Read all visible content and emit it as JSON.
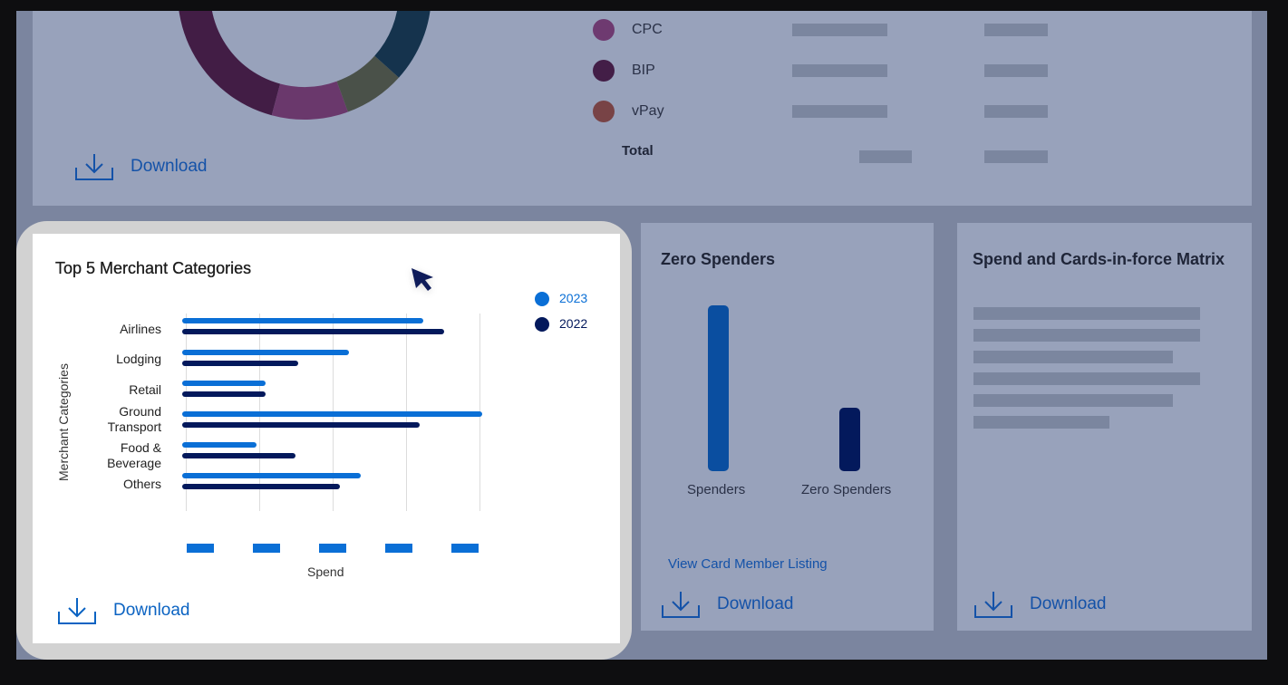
{
  "colors": {
    "frame_bg": "#7b859f",
    "card_bg_dimmed": "#98a2bb",
    "card_bg_active": "#ffffff",
    "highlight_ring": "#d2d2d2",
    "skeleton": "#7b869f",
    "link_blue": "#0b63c2",
    "series_2023": "#0a6fd6",
    "series_2022": "#03195c",
    "spenders_bar": "#0a4ea0",
    "zero_spenders_bar": "#03195c"
  },
  "top_card": {
    "donut_segments": [
      {
        "color": "#421d45",
        "label": "segment-1"
      },
      {
        "color": "#6a386c",
        "label": "segment-2"
      },
      {
        "color": "#4a5149",
        "label": "segment-3"
      },
      {
        "color": "#15334d",
        "label": "segment-4"
      }
    ],
    "legend": [
      {
        "label": "CPC",
        "color": "#6e3a70"
      },
      {
        "label": "BIP",
        "color": "#431e47"
      },
      {
        "label": "vPay",
        "color": "#784346"
      }
    ],
    "total_label": "Total",
    "download_label": "Download"
  },
  "merchant_card": {
    "title": "Top 5 Merchant Categories",
    "download_label": "Download"
  },
  "chart_data": {
    "type": "bar",
    "orientation": "horizontal",
    "title": "Top 5 Merchant Categories",
    "xlabel": "Spend",
    "ylabel": "Merchant Categories",
    "categories": [
      "Airlines",
      "Lodging",
      "Retail",
      "Ground Transport",
      "Food & Beverage",
      "Others"
    ],
    "category_lines": [
      [
        "Airlines"
      ],
      [
        "Lodging"
      ],
      [
        "Retail"
      ],
      [
        "Ground",
        "Transport"
      ],
      [
        "Food &",
        "Beverage"
      ],
      [
        "Others"
      ]
    ],
    "series": [
      {
        "name": "2023",
        "color": "#0a6fd6",
        "values": [
          81,
          56,
          28,
          101,
          25,
          60
        ]
      },
      {
        "name": "2022",
        "color": "#03195c",
        "values": [
          88,
          39,
          28,
          80,
          38,
          53
        ]
      }
    ],
    "xlim": [
      0,
      100
    ],
    "x_tick_labels": [
      "▬",
      "▬",
      "▬",
      "▬",
      "▬"
    ],
    "grid": true,
    "legend_position": "top-right"
  },
  "zero_spenders": {
    "title": "Zero Spenders",
    "chart": {
      "type": "bar",
      "categories": [
        "Spenders",
        "Zero Spenders"
      ],
      "values": [
        100,
        38
      ]
    },
    "link_label": "View Card Member Listing",
    "download_label": "Download"
  },
  "matrix": {
    "title": "Spend and Cards-in-force Matrix",
    "skeleton_line_widths": [
      250,
      250,
      220,
      250,
      220,
      150
    ],
    "download_label": "Download"
  }
}
